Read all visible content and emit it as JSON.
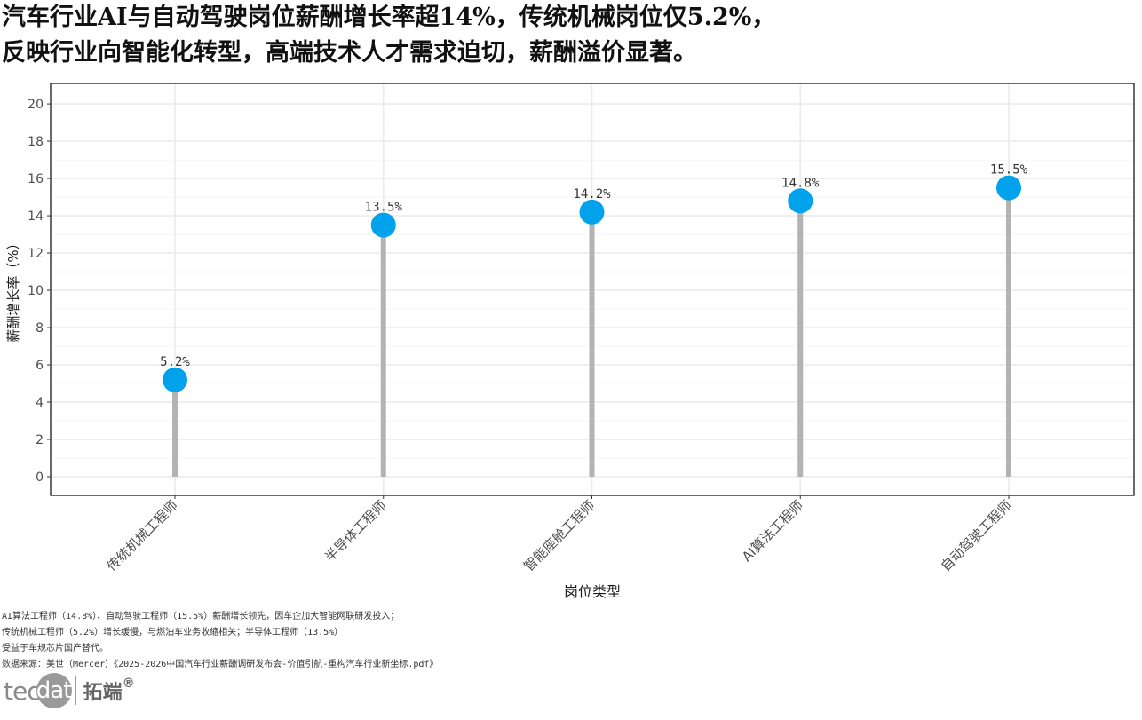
{
  "title_lines": [
    "汽车行业AI与自动驾驶岗位薪酬增长率超14%，传统机械岗位仅5.2%，",
    "反映行业向智能化转型，高端技术人才需求迫切，薪酬溢价显著。"
  ],
  "notes": [
    "AI算法工程师（14.8%）、自动驾驶工程师（15.5%）薪酬增长领先，因车企加大智能网联研发投入；",
    "传统机械工程师（5.2%）增长缓慢，与燃油车业务收缩相关；半导体工程师（13.5%）",
    "受益于车规芯片国产替代。",
    "数据来源：美世（Mercer）《2025-2026中国汽车行业薪酬调研发布会-价值引航-重构汽车行业新坐标.pdf》"
  ],
  "logo": {
    "tec": "tec",
    "circle": "dat",
    "cn": "拓端",
    "reg": "®"
  },
  "chart_data": {
    "type": "lollipop",
    "title": "",
    "xlabel": "岗位类型",
    "ylabel": "薪酬增长率（%）",
    "categories": [
      "传统机械工程师",
      "半导体工程师",
      "智能座舱工程师",
      "AI算法工程师",
      "自动驾驶工程师"
    ],
    "values": [
      5.2,
      13.5,
      14.2,
      14.8,
      15.5
    ],
    "data_labels": [
      "5.2%",
      "13.5%",
      "14.2%",
      "14.8%",
      "15.5%"
    ],
    "yticks": [
      0,
      2,
      4,
      6,
      8,
      10,
      12,
      14,
      16,
      18,
      20
    ],
    "ylim": [
      -1,
      21.1
    ],
    "grid": true,
    "colors": {
      "point": "#00A2EC",
      "stem": "#b3b3b3",
      "grid": "#ebebeb",
      "frame": "#1a1a1a"
    }
  }
}
